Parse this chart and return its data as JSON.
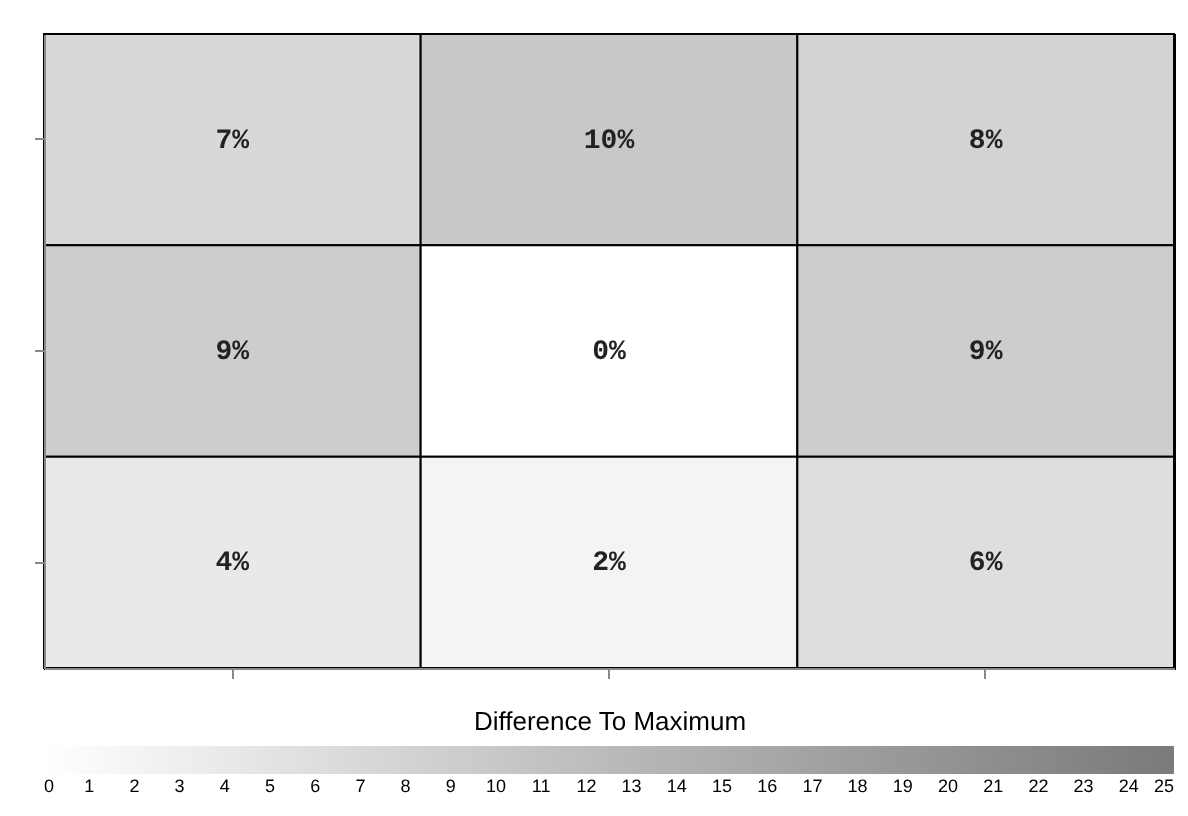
{
  "chart_data": {
    "type": "heatmap",
    "clabel": "Difference To Maximum",
    "categories": [
      null,
      null,
      null
    ],
    "y_categories": [
      null,
      null,
      null
    ],
    "cells": [
      [
        7,
        10,
        8
      ],
      [
        9,
        0,
        9
      ],
      [
        4,
        2,
        6
      ]
    ],
    "cell_labels": [
      [
        "7%",
        "10%",
        "8%"
      ],
      [
        "9%",
        "0%",
        "9%"
      ],
      [
        "4%",
        "2%",
        "6%"
      ]
    ],
    "clim": [
      0,
      25
    ],
    "cticks": [
      0,
      1,
      2,
      3,
      4,
      5,
      6,
      7,
      8,
      9,
      10,
      11,
      12,
      13,
      14,
      15,
      16,
      17,
      18,
      19,
      20,
      21,
      22,
      23,
      24,
      25
    ]
  }
}
